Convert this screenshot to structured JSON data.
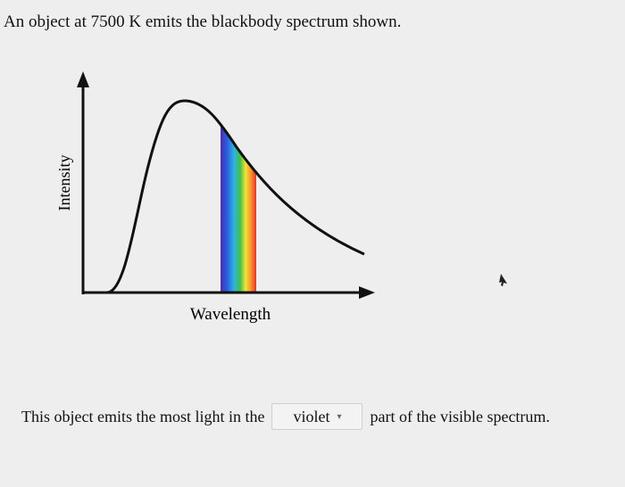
{
  "question": "An object at 7500 K emits the blackbody spectrum shown.",
  "diagram": {
    "y_label": "Intensity",
    "x_label": "Wavelength"
  },
  "answer": {
    "prefix": "This object emits the most light in the",
    "selected": "violet",
    "suffix": "part of the visible spectrum."
  }
}
